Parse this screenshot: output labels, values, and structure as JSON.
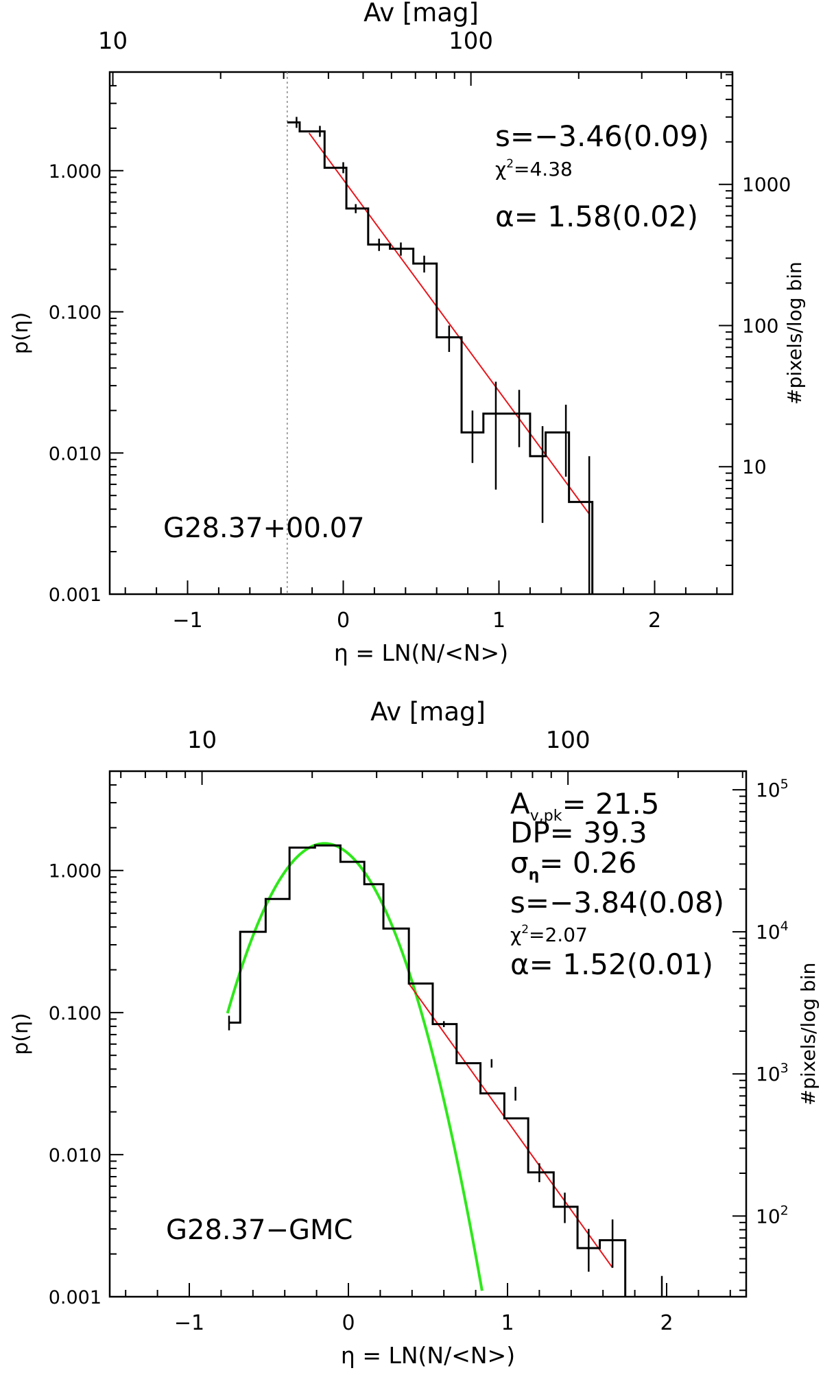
{
  "chart_data": [
    {
      "type": "step-histogram",
      "xlabel": "η = LN(N/<N>)",
      "ylabel": "p(η)",
      "right_ylabel": "#pixels/log bin",
      "top_xlabel": "Av [mag]",
      "xlim": [
        -1.5,
        2.5
      ],
      "ylim": [
        0.001,
        5.0
      ],
      "yscale": "log",
      "x_ticks": [
        "−1",
        "0",
        "1",
        "2"
      ],
      "x_tick_values": [
        -1,
        0,
        1,
        2
      ],
      "y_ticks": [
        "1.000",
        "0.100",
        "0.010",
        "0.001"
      ],
      "y_tick_values": [
        1.0,
        0.1,
        0.01,
        0.001
      ],
      "top_ticks": [
        {
          "label": "10",
          "eta": -1.48
        },
        {
          "label": "100",
          "eta": 0.82
        }
      ],
      "right_ticks": [
        {
          "label": "1000",
          "y": 0.8
        },
        {
          "label": "100",
          "y": 0.08
        },
        {
          "label": "10",
          "y": 0.008
        }
      ],
      "annotations": {
        "s": "s=−3.46(0.09)",
        "chi_prefix": "χ",
        "chi_suffix": "=4.38",
        "alpha": "α=  1.58(0.02)",
        "region_name": "G28.37+00.07"
      },
      "threshold_eta": -0.36,
      "histogram": {
        "edges": [
          -0.36,
          -0.28,
          -0.12,
          0.02,
          0.16,
          0.3,
          0.45,
          0.6,
          0.76,
          0.9,
          1.05,
          1.2,
          1.3,
          1.45,
          1.6
        ],
        "values": [
          2.2,
          1.9,
          1.05,
          0.54,
          0.3,
          0.28,
          0.22,
          0.066,
          0.014,
          0.019,
          0.019,
          0.0095,
          0.014,
          0.0045
        ]
      },
      "error_bars": [
        {
          "x": -0.3,
          "y": 2.2,
          "lo": 2.2,
          "hi": 2.2
        },
        {
          "x": -0.15,
          "y": 1.9,
          "lo": 1.9,
          "hi": 1.9
        },
        {
          "x": 0.0,
          "y": 1.05,
          "lo": 1.05,
          "hi": 1.05
        },
        {
          "x": 0.08,
          "y": 0.54,
          "lo": 0.5,
          "hi": 0.58
        },
        {
          "x": 0.23,
          "y": 0.3,
          "lo": 0.27,
          "hi": 0.33
        },
        {
          "x": 0.37,
          "y": 0.28,
          "lo": 0.25,
          "hi": 0.31
        },
        {
          "x": 0.52,
          "y": 0.22,
          "lo": 0.19,
          "hi": 0.25
        },
        {
          "x": 0.68,
          "y": 0.066,
          "lo": 0.052,
          "hi": 0.08
        },
        {
          "x": 0.83,
          "y": 0.014,
          "lo": 0.0085,
          "hi": 0.02
        },
        {
          "x": 0.98,
          "y": 0.019,
          "lo": 0.0055,
          "hi": 0.032
        },
        {
          "x": 1.13,
          "y": 0.019,
          "lo": 0.011,
          "hi": 0.028
        },
        {
          "x": 1.28,
          "y": 0.0095,
          "lo": 0.0032,
          "hi": 0.0155
        },
        {
          "x": 1.43,
          "y": 0.014,
          "lo": 0.0068,
          "hi": 0.022
        },
        {
          "x": 1.58,
          "y": 0.0045,
          "lo": 0.001,
          "hi": 0.0095
        }
      ],
      "fits": [
        {
          "kind": "power-law",
          "color": "#e8161c",
          "points": [
            [
              -0.22,
              1.85
            ],
            [
              1.58,
              0.0037
            ]
          ]
        }
      ]
    },
    {
      "type": "step-histogram",
      "xlabel": "η = LN(N/<N>)",
      "ylabel": "p(η)",
      "right_ylabel": "#pixels/log bin",
      "top_xlabel": "Av [mag]",
      "xlim": [
        -1.5,
        2.5
      ],
      "ylim": [
        0.001,
        5.0
      ],
      "yscale": "log",
      "x_ticks": [
        "−1",
        "0",
        "1",
        "2"
      ],
      "x_tick_values": [
        -1,
        0,
        1,
        2
      ],
      "y_ticks": [
        "1.000",
        "0.100",
        "0.010",
        "0.001"
      ],
      "y_tick_values": [
        1.0,
        0.1,
        0.01,
        0.001
      ],
      "top_ticks": [
        {
          "label": "10",
          "eta": -0.92
        },
        {
          "label": "100",
          "eta": 1.38
        }
      ],
      "right_ticks": [
        {
          "base": "10",
          "exp": "5",
          "y": 3.7
        },
        {
          "base": "10",
          "exp": "4",
          "y": 0.37
        },
        {
          "base": "10",
          "exp": "3",
          "y": 0.037
        },
        {
          "base": "10",
          "exp": "2",
          "y": 0.0037
        }
      ],
      "annotations": {
        "av_pk_prefix": "A",
        "av_pk_sub": "v,pk",
        "av_pk_value": "=  21.5",
        "dp": "DP=  39.3",
        "sigma_prefix": "σ",
        "sigma_sub": "η",
        "sigma_value": "=  0.26",
        "s": "s=−3.84(0.08)",
        "chi_prefix": "χ",
        "chi_suffix": "=2.07",
        "alpha": "α=  1.52(0.01)",
        "region_name": "G28.37−GMC"
      },
      "histogram": {
        "edges": [
          -0.75,
          -0.68,
          -0.52,
          -0.37,
          -0.21,
          -0.05,
          0.1,
          0.22,
          0.38,
          0.53,
          0.68,
          0.83,
          0.98,
          1.13,
          1.29,
          1.44,
          1.58,
          1.74
        ],
        "values": [
          0.085,
          0.37,
          0.63,
          1.45,
          1.5,
          1.15,
          0.8,
          0.39,
          0.16,
          0.083,
          0.044,
          0.027,
          0.018,
          0.0075,
          0.0043,
          0.0022,
          0.0025
        ]
      },
      "error_bars": [
        {
          "x": -0.75,
          "y": 0.085,
          "lo": 0.075,
          "hi": 0.095
        },
        {
          "x": 0.6,
          "y": 0.083,
          "lo": 0.079,
          "hi": 0.087
        },
        {
          "x": 0.9,
          "y": 0.044,
          "lo": 0.041,
          "hi": 0.047
        },
        {
          "x": 1.05,
          "y": 0.027,
          "lo": 0.024,
          "hi": 0.03
        },
        {
          "x": 1.2,
          "y": 0.0075,
          "lo": 0.0064,
          "hi": 0.0087
        },
        {
          "x": 1.36,
          "y": 0.0043,
          "lo": 0.0033,
          "hi": 0.0054
        },
        {
          "x": 1.51,
          "y": 0.0022,
          "lo": 0.0015,
          "hi": 0.003
        },
        {
          "x": 1.66,
          "y": 0.0025,
          "lo": 0.0016,
          "hi": 0.0035
        },
        {
          "x": 1.97,
          "y": 0.001,
          "lo": 0.001,
          "hi": 0.0014
        }
      ],
      "fits": [
        {
          "kind": "lognormal",
          "color": "#2ee81a",
          "mu": -0.15,
          "sigma": 0.26,
          "peak": 1.55,
          "x_range": [
            -0.76,
            0.84
          ]
        },
        {
          "kind": "power-law",
          "color": "#e8161c",
          "points": [
            [
              0.38,
              0.16
            ],
            [
              1.66,
              0.0016
            ]
          ]
        }
      ]
    }
  ]
}
